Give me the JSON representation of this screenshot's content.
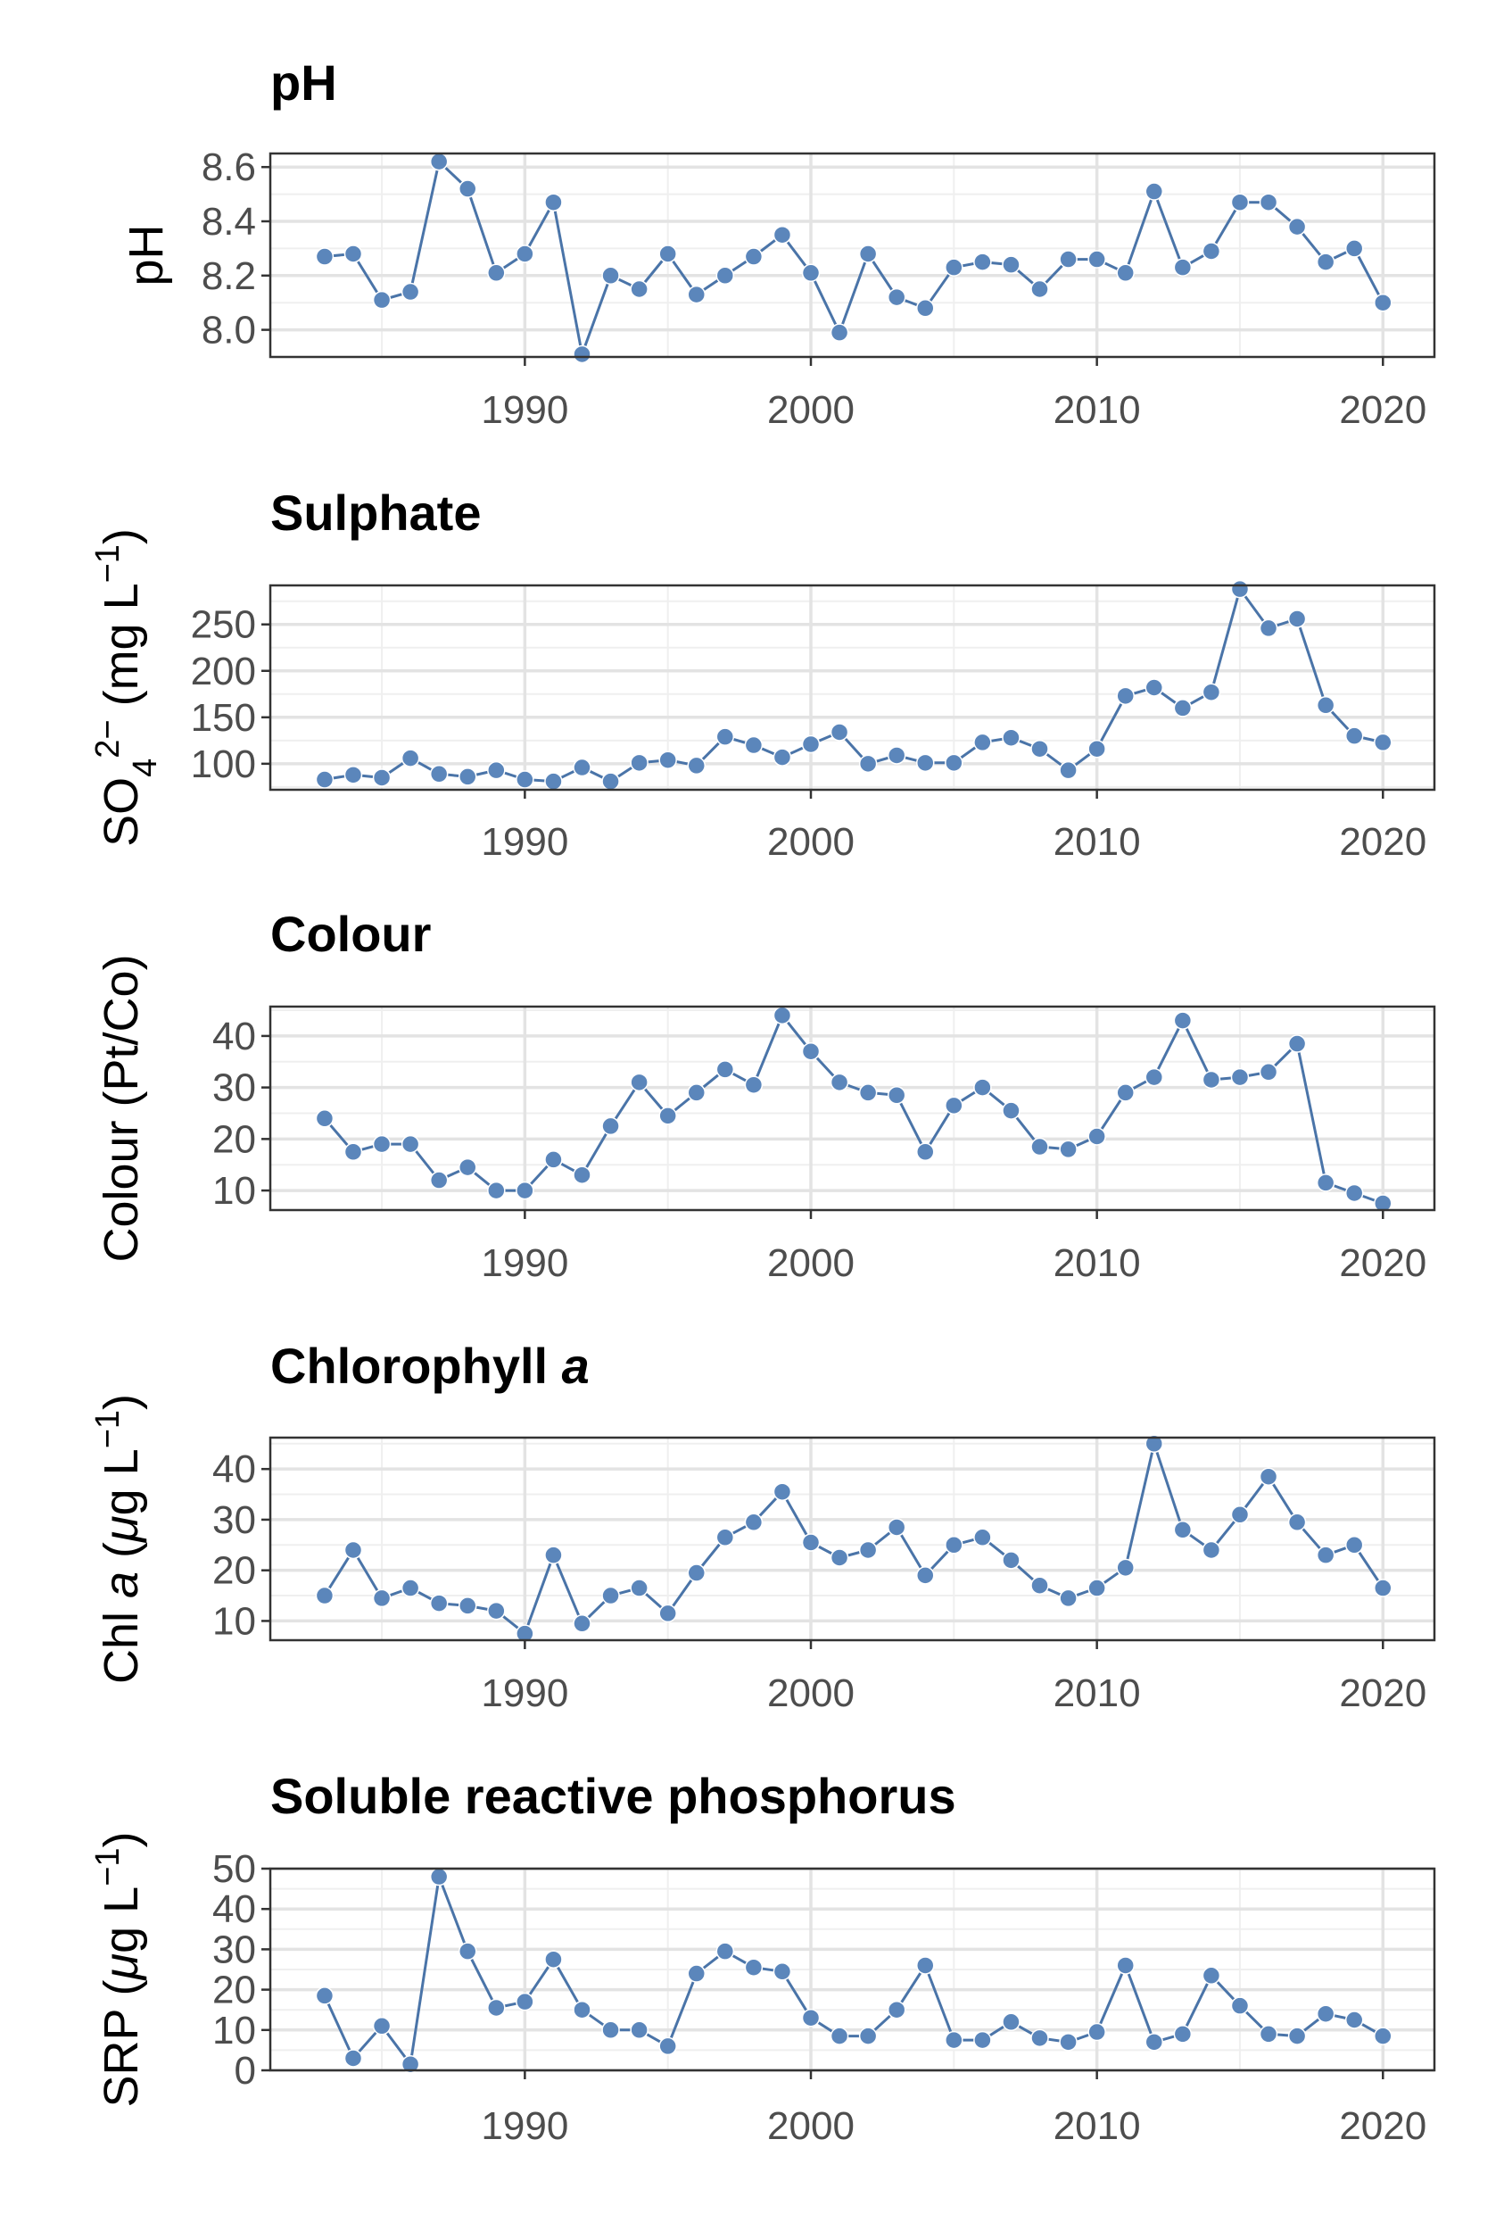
{
  "style": {
    "series_color": "#4a74a8",
    "point_fill": "#5b86bb",
    "grid_major": "#e3e3e3",
    "grid_minor": "#efefef",
    "panel_border": "#333333"
  },
  "chart_data": [
    {
      "type": "line",
      "title": "pH",
      "ylabel": "pH",
      "ylabel_parts": [
        {
          "text": "pH",
          "italic": false,
          "shift": "none"
        }
      ],
      "xlim": [
        1981.1,
        2021.8
      ],
      "ylim": [
        7.9,
        8.65
      ],
      "yticks": [
        8.0,
        8.2,
        8.4,
        8.6
      ],
      "ytick_labels": [
        "8.0",
        "8.2",
        "8.4",
        "8.6"
      ],
      "xticks": [
        1990,
        2000,
        2010,
        2020
      ],
      "xtick_labels": [
        "1990",
        "2000",
        "2010",
        "2020"
      ],
      "grid": true,
      "x": [
        1983,
        1984,
        1985,
        1986,
        1987,
        1988,
        1989,
        1990,
        1991,
        1992,
        1993,
        1994,
        1995,
        1996,
        1997,
        1998,
        1999,
        2000,
        2001,
        2002,
        2003,
        2004,
        2005,
        2006,
        2007,
        2008,
        2009,
        2010,
        2011,
        2012,
        2013,
        2014,
        2015,
        2016,
        2017,
        2018,
        2019,
        2020
      ],
      "y": [
        8.27,
        8.28,
        8.11,
        8.14,
        8.62,
        8.52,
        8.21,
        8.28,
        8.47,
        7.91,
        8.2,
        8.15,
        8.28,
        8.13,
        8.2,
        8.27,
        8.35,
        8.21,
        7.99,
        8.28,
        8.12,
        8.08,
        8.23,
        8.25,
        8.24,
        8.15,
        8.26,
        8.26,
        8.21,
        8.51,
        8.23,
        8.29,
        8.47,
        8.47,
        8.38,
        8.25,
        8.3,
        8.1
      ]
    },
    {
      "type": "line",
      "title": "Sulphate",
      "ylabel": "SO42− (mg L−1)",
      "ylabel_parts": [
        {
          "text": "SO",
          "italic": false,
          "shift": "none"
        },
        {
          "text": "4",
          "italic": false,
          "shift": "sub"
        },
        {
          "text": "2−",
          "italic": false,
          "shift": "super"
        },
        {
          "text": " (mg L",
          "italic": false,
          "shift": "none"
        },
        {
          "text": "−1",
          "italic": false,
          "shift": "super"
        },
        {
          "text": ")",
          "italic": false,
          "shift": "none"
        }
      ],
      "xlim": [
        1981.1,
        2021.8
      ],
      "ylim": [
        72,
        292
      ],
      "yticks": [
        100,
        150,
        200,
        250
      ],
      "ytick_labels": [
        "100",
        "150",
        "200",
        "250"
      ],
      "xticks": [
        1990,
        2000,
        2010,
        2020
      ],
      "xtick_labels": [
        "1990",
        "2000",
        "2010",
        "2020"
      ],
      "grid": true,
      "x": [
        1983,
        1984,
        1985,
        1986,
        1987,
        1988,
        1989,
        1990,
        1991,
        1992,
        1993,
        1994,
        1995,
        1996,
        1997,
        1998,
        1999,
        2000,
        2001,
        2002,
        2003,
        2004,
        2005,
        2006,
        2007,
        2008,
        2009,
        2010,
        2011,
        2012,
        2013,
        2014,
        2015,
        2016,
        2017,
        2018,
        2019,
        2020
      ],
      "y": [
        83,
        88,
        85,
        106,
        89,
        86,
        93,
        83,
        81,
        96,
        81,
        101,
        104,
        98,
        129,
        120,
        107,
        121,
        134,
        100,
        109,
        101,
        101,
        123,
        128,
        116,
        93,
        116,
        173,
        182,
        160,
        177,
        288,
        246,
        256,
        163,
        130,
        123
      ]
    },
    {
      "type": "line",
      "title": "Colour",
      "ylabel": "Colour (Pt/Co)",
      "ylabel_parts": [
        {
          "text": "Colour (Pt/Co)",
          "italic": false,
          "shift": "none"
        }
      ],
      "xlim": [
        1981.1,
        2021.8
      ],
      "ylim": [
        6.2,
        45.7
      ],
      "yticks": [
        10,
        20,
        30,
        40
      ],
      "ytick_labels": [
        "10",
        "20",
        "30",
        "40"
      ],
      "xticks": [
        1990,
        2000,
        2010,
        2020
      ],
      "xtick_labels": [
        "1990",
        "2000",
        "2010",
        "2020"
      ],
      "grid": true,
      "x": [
        1983,
        1984,
        1985,
        1986,
        1987,
        1988,
        1989,
        1990,
        1991,
        1992,
        1993,
        1994,
        1995,
        1996,
        1997,
        1998,
        1999,
        2000,
        2001,
        2002,
        2003,
        2004,
        2005,
        2006,
        2007,
        2008,
        2009,
        2010,
        2011,
        2012,
        2013,
        2014,
        2015,
        2016,
        2017,
        2018,
        2019,
        2020
      ],
      "y": [
        24,
        17.5,
        19,
        19,
        12,
        14.5,
        10,
        10,
        16,
        13,
        22.5,
        31,
        24.5,
        29,
        33.5,
        30.5,
        44,
        37,
        31,
        29,
        28.5,
        17.5,
        26.5,
        30,
        25.5,
        18.5,
        18,
        20.5,
        29,
        32,
        43,
        31.5,
        32,
        33,
        38.5,
        11.5,
        9.5,
        7.5
      ]
    },
    {
      "type": "line",
      "title": "Chlorophyll a",
      "title_parts": [
        {
          "text": "Chlorophyll ",
          "italic": false
        },
        {
          "text": "a",
          "italic": true
        }
      ],
      "ylabel": "Chl a (μg L−1)",
      "ylabel_parts": [
        {
          "text": "Chl ",
          "italic": false,
          "shift": "none"
        },
        {
          "text": "a",
          "italic": true,
          "shift": "none"
        },
        {
          "text": " (",
          "italic": false,
          "shift": "none"
        },
        {
          "text": "μ",
          "italic": true,
          "shift": "none"
        },
        {
          "text": "g L",
          "italic": false,
          "shift": "none"
        },
        {
          "text": "−1",
          "italic": false,
          "shift": "super"
        },
        {
          "text": ")",
          "italic": false,
          "shift": "none"
        }
      ],
      "xlim": [
        1981.1,
        2021.8
      ],
      "ylim": [
        6.2,
        46.2
      ],
      "yticks": [
        10,
        20,
        30,
        40
      ],
      "ytick_labels": [
        "10",
        "20",
        "30",
        "40"
      ],
      "xticks": [
        1990,
        2000,
        2010,
        2020
      ],
      "xtick_labels": [
        "1990",
        "2000",
        "2010",
        "2020"
      ],
      "grid": true,
      "x": [
        1983,
        1984,
        1985,
        1986,
        1987,
        1988,
        1989,
        1990,
        1991,
        1992,
        1993,
        1994,
        1995,
        1996,
        1997,
        1998,
        1999,
        2000,
        2001,
        2002,
        2003,
        2004,
        2005,
        2006,
        2007,
        2008,
        2009,
        2010,
        2011,
        2012,
        2013,
        2014,
        2015,
        2016,
        2017,
        2018,
        2019,
        2020
      ],
      "y": [
        15,
        24,
        14.5,
        16.5,
        13.5,
        13,
        12,
        7.5,
        23,
        9.5,
        15,
        16.5,
        11.5,
        19.5,
        26.5,
        29.5,
        35.5,
        25.5,
        22.5,
        24,
        28.5,
        19,
        25,
        26.5,
        22,
        17,
        14.5,
        16.5,
        20.5,
        45,
        28,
        24,
        31,
        38.5,
        29.5,
        23,
        25,
        16.5
      ]
    },
    {
      "type": "line",
      "title": "Soluble reactive phosphorus",
      "ylabel": "SRP (μg L−1)",
      "ylabel_parts": [
        {
          "text": "SRP (",
          "italic": false,
          "shift": "none"
        },
        {
          "text": "μ",
          "italic": true,
          "shift": "none"
        },
        {
          "text": "g L",
          "italic": false,
          "shift": "none"
        },
        {
          "text": "−1",
          "italic": false,
          "shift": "super"
        },
        {
          "text": ")",
          "italic": false,
          "shift": "none"
        }
      ],
      "xlim": [
        1981.1,
        2021.8
      ],
      "ylim": [
        0,
        50
      ],
      "yticks": [
        0,
        10,
        20,
        30,
        40,
        50
      ],
      "ytick_labels": [
        "0",
        "10",
        "20",
        "30",
        "40",
        "50"
      ],
      "xticks": [
        1990,
        2000,
        2010,
        2020
      ],
      "xtick_labels": [
        "1990",
        "2000",
        "2010",
        "2020"
      ],
      "grid": true,
      "x": [
        1983,
        1984,
        1985,
        1986,
        1987,
        1988,
        1989,
        1990,
        1991,
        1992,
        1993,
        1994,
        1995,
        1996,
        1997,
        1998,
        1999,
        2000,
        2001,
        2002,
        2003,
        2004,
        2005,
        2006,
        2007,
        2008,
        2009,
        2010,
        2011,
        2012,
        2013,
        2014,
        2015,
        2016,
        2017,
        2018,
        2019,
        2020
      ],
      "y": [
        18.5,
        3,
        11,
        1.5,
        48,
        29.5,
        15.5,
        17,
        27.5,
        15,
        10,
        10,
        6,
        24,
        29.5,
        25.5,
        24.5,
        13,
        8.5,
        8.5,
        15,
        26,
        7.5,
        7.5,
        12,
        8,
        7,
        9.5,
        26,
        7,
        9,
        23.5,
        16,
        9,
        8.5,
        14,
        12.5,
        8.5
      ]
    }
  ]
}
